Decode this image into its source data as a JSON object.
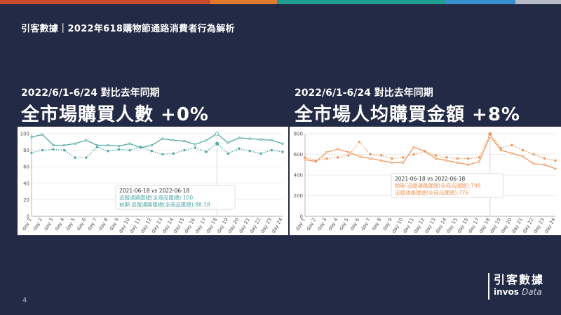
{
  "header": {
    "title": "引客數據｜2022年618購物節通路消費者行為解析",
    "page_number": "4"
  },
  "colors": {
    "background": "#232a45",
    "top_bar": [
      "#c94a2c",
      "#e07a2f",
      "#1f9e8f",
      "#3a8fd0",
      "#b8bcc6"
    ],
    "teal": "#4fa9a4",
    "orange": "#f0955a"
  },
  "logo": {
    "cn": "引客數據",
    "en_bold": "invos",
    "en_light": "Data"
  },
  "left": {
    "subtitle": "2022/6/1-6/24 對比去年同期",
    "headline": "全市場購買人數 +0%",
    "tooltip": {
      "title": "2021-06-18 vs 2022-06-18",
      "line1": "追蹤通路匯總(全商品匯總):100",
      "line2": "前期 追蹤通路匯總(全商品匯總):88.18"
    }
  },
  "right": {
    "subtitle": "2022/6/1-6/24 對比去年同期",
    "headline": "全市場人均購買金額 +8%",
    "tooltip": {
      "title": "2021-06-18 vs 2022-06-18",
      "line1": "前期 追蹤通路匯總(全商品匯總):798",
      "line2": "追蹤通路匯總(全商品匯總):776"
    }
  },
  "chart_data": [
    {
      "type": "line",
      "color": "#4fa9a4",
      "categories": [
        "day 1",
        "day 2",
        "day 3",
        "day 4",
        "day 5",
        "day 6",
        "day 7",
        "day 8",
        "day 9",
        "day 10",
        "day 11",
        "day 12",
        "day 13",
        "day 14",
        "day 15",
        "day 16",
        "day 17",
        "day 18",
        "day 19",
        "day 20",
        "day 21",
        "day 22",
        "day 23",
        "day 24"
      ],
      "ylim": [
        0,
        100
      ],
      "yticks": [
        0,
        20,
        40,
        60,
        80,
        100
      ],
      "series": [
        {
          "style": "solid",
          "values": [
            96,
            99,
            86,
            86,
            88,
            92,
            86,
            86,
            85,
            88,
            83,
            86,
            94,
            92,
            91,
            87,
            92,
            100,
            89,
            95,
            94,
            93,
            92,
            88
          ]
        },
        {
          "style": "dotted",
          "values": [
            77,
            80,
            81,
            80,
            71,
            71,
            84,
            79,
            81,
            80,
            84,
            79,
            75,
            76,
            80,
            83,
            78,
            88,
            76,
            82,
            79,
            76,
            80,
            78
          ]
        }
      ]
    },
    {
      "type": "line",
      "color": "#f0955a",
      "categories": [
        "day 1",
        "day 2",
        "day 3",
        "day 4",
        "day 5",
        "day 6",
        "day 7",
        "day 8",
        "day 9",
        "day 10",
        "day 11",
        "day 12",
        "day 13",
        "day 14",
        "day 15",
        "day 16",
        "day 17",
        "day 18",
        "day 19",
        "day 20",
        "day 21",
        "day 22",
        "day 23",
        "day 24"
      ],
      "ylim": [
        0,
        800
      ],
      "yticks": [
        0,
        200,
        400,
        600,
        800
      ],
      "series": [
        {
          "style": "solid",
          "values": [
            550,
            530,
            620,
            650,
            620,
            580,
            560,
            540,
            520,
            520,
            670,
            630,
            560,
            540,
            520,
            500,
            530,
            776,
            640,
            610,
            580,
            510,
            500,
            460
          ]
        },
        {
          "style": "dotted",
          "values": [
            570,
            540,
            560,
            570,
            590,
            720,
            600,
            590,
            560,
            570,
            600,
            630,
            590,
            570,
            560,
            560,
            570,
            798,
            660,
            690,
            640,
            600,
            560,
            540
          ]
        }
      ]
    }
  ]
}
